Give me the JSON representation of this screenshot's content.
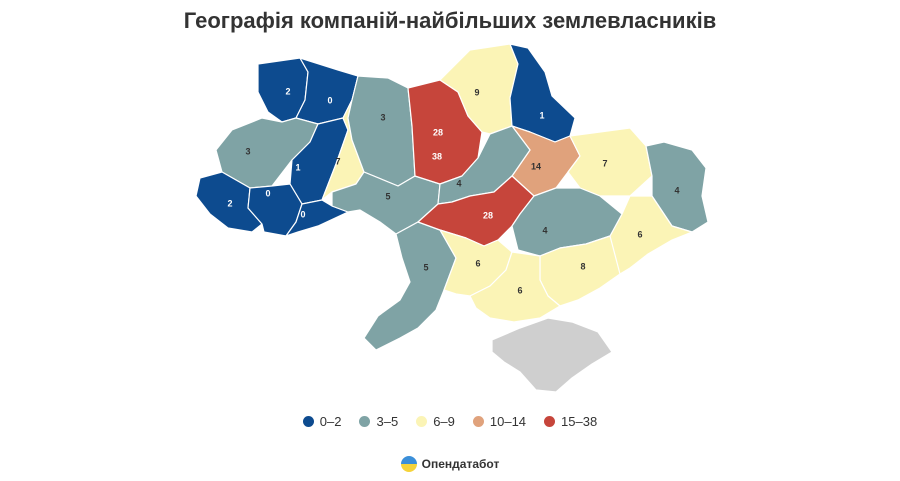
{
  "title": "Географія компаній-найбільших землевласників",
  "colors": {
    "bin_0_2": "#0d4b8f",
    "bin_3_5": "#7fa3a5",
    "bin_6_9": "#fbf4b6",
    "bin_10_14": "#e0a27c",
    "bin_15_38": "#c6453b",
    "no_data": "#cfcfcf"
  },
  "regions": [
    {
      "id": "volyn",
      "value": "2",
      "bin": "bin_0_2"
    },
    {
      "id": "rivne",
      "value": "0",
      "bin": "bin_0_2"
    },
    {
      "id": "lviv",
      "value": "3",
      "bin": "bin_3_5"
    },
    {
      "id": "ternopil",
      "value": "1",
      "bin": "bin_0_2"
    },
    {
      "id": "zakarpattia",
      "value": "2",
      "bin": "bin_0_2"
    },
    {
      "id": "ivano-frankivsk",
      "value": "0",
      "bin": "bin_0_2"
    },
    {
      "id": "chernivtsi",
      "value": "0",
      "bin": "bin_0_2"
    },
    {
      "id": "khmelnytskyi",
      "value": "7",
      "bin": "bin_6_9"
    },
    {
      "id": "zhytomyr",
      "value": "3",
      "bin": "bin_3_5"
    },
    {
      "id": "vinnytsia",
      "value": "5",
      "bin": "bin_3_5"
    },
    {
      "id": "odesa",
      "value": "5",
      "bin": "bin_3_5"
    },
    {
      "id": "kyiv-city",
      "value": "28",
      "bin": "bin_15_38"
    },
    {
      "id": "kyiv",
      "value": "38",
      "bin": "bin_15_38"
    },
    {
      "id": "chernihiv",
      "value": "9",
      "bin": "bin_6_9"
    },
    {
      "id": "sumy",
      "value": "1",
      "bin": "bin_0_2"
    },
    {
      "id": "poltava",
      "value": "14",
      "bin": "bin_10_14"
    },
    {
      "id": "cherkasy",
      "value": "4",
      "bin": "bin_3_5"
    },
    {
      "id": "kirovohrad",
      "value": "28",
      "bin": "bin_15_38"
    },
    {
      "id": "kharkiv",
      "value": "7",
      "bin": "bin_6_9"
    },
    {
      "id": "luhansk",
      "value": "4",
      "bin": "bin_3_5"
    },
    {
      "id": "donetsk",
      "value": "6",
      "bin": "bin_6_9"
    },
    {
      "id": "dnipropetrovsk",
      "value": "4",
      "bin": "bin_3_5"
    },
    {
      "id": "mykolaiv",
      "value": "6",
      "bin": "bin_6_9"
    },
    {
      "id": "zaporizhzhia",
      "value": "8",
      "bin": "bin_6_9"
    },
    {
      "id": "kherson",
      "value": "6",
      "bin": "bin_6_9"
    },
    {
      "id": "crimea",
      "value": "",
      "bin": "no_data"
    }
  ],
  "legend": [
    {
      "label": "0–2",
      "bin": "bin_0_2"
    },
    {
      "label": "3–5",
      "bin": "bin_3_5"
    },
    {
      "label": "6–9",
      "bin": "bin_6_9"
    },
    {
      "label": "10–14",
      "bin": "bin_10_14"
    },
    {
      "label": "15–38",
      "bin": "bin_15_38"
    }
  ],
  "logo": {
    "text": "Опендатабот",
    "icon": "opendatabot-logo-icon"
  }
}
